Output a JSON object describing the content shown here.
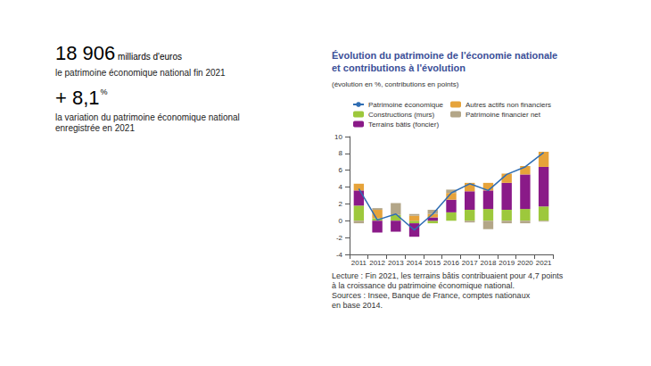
{
  "key_figures": [
    {
      "value": "18 906",
      "unit": "milliards d'euros",
      "caption": [
        "le patrimoine économique national fin 2021"
      ]
    },
    {
      "value": "+ 8,1",
      "unit": "%",
      "caption": [
        "la variation du patrimoine économique national",
        "enregistrée en 2021"
      ]
    }
  ],
  "chart_data": {
    "type": "bar",
    "title": "Évolution du patrimoine de l'économie nationale\net contributions à l'évolution",
    "subtitle": "(évolution en %, contributions en points)",
    "categories": [
      "2011",
      "2012",
      "2013",
      "2014",
      "2015",
      "2016",
      "2017",
      "2018",
      "2019",
      "2020",
      "2021"
    ],
    "series": [
      {
        "name": "Patrimoine économique",
        "type": "line",
        "color": "#2f6db3",
        "marker": "none",
        "values": [
          3.8,
          0.1,
          0.8,
          -1.1,
          0.8,
          3.3,
          4.4,
          3.6,
          5.5,
          6.4,
          8.1
        ]
      },
      {
        "name": "Constructions (murs)",
        "type": "bar",
        "color": "#9dc83c",
        "values": [
          1.8,
          0.3,
          0.7,
          -0.3,
          -0.3,
          1.0,
          1.3,
          1.4,
          1.3,
          1.4,
          1.7
        ]
      },
      {
        "name": "Terrains bâtis (foncier)",
        "type": "bar",
        "color": "#8a1a88",
        "values": [
          1.8,
          -1.4,
          -1.3,
          -1.6,
          0.4,
          1.5,
          2.2,
          2.2,
          3.2,
          4.1,
          4.7
        ]
      },
      {
        "name": "Autres actifs non financiers",
        "type": "bar",
        "color": "#e6a33a",
        "values": [
          0.8,
          1.0,
          0.0,
          0.6,
          0.4,
          0.8,
          1.0,
          0.9,
          1.1,
          1.0,
          1.8
        ]
      },
      {
        "name": "Patrimoine financier net",
        "type": "bar",
        "color": "#b3a688",
        "values": [
          -0.3,
          0.2,
          1.4,
          0.2,
          0.5,
          0.4,
          -0.2,
          -1.0,
          -0.3,
          -0.3,
          -0.1
        ]
      }
    ],
    "stacked": true,
    "ylim": [
      -4,
      10
    ],
    "yticks": [
      -4,
      -2,
      0,
      2,
      4,
      6,
      8,
      10
    ],
    "grid": false,
    "notes": [
      "Lecture : Fin 2021, les terrains bâtis contribuaient pour 4,7 points",
      "à la croissance du patrimoine économique national.",
      "Sources : Insee, Banque de France, comptes nationaux",
      "en base 2014."
    ]
  }
}
